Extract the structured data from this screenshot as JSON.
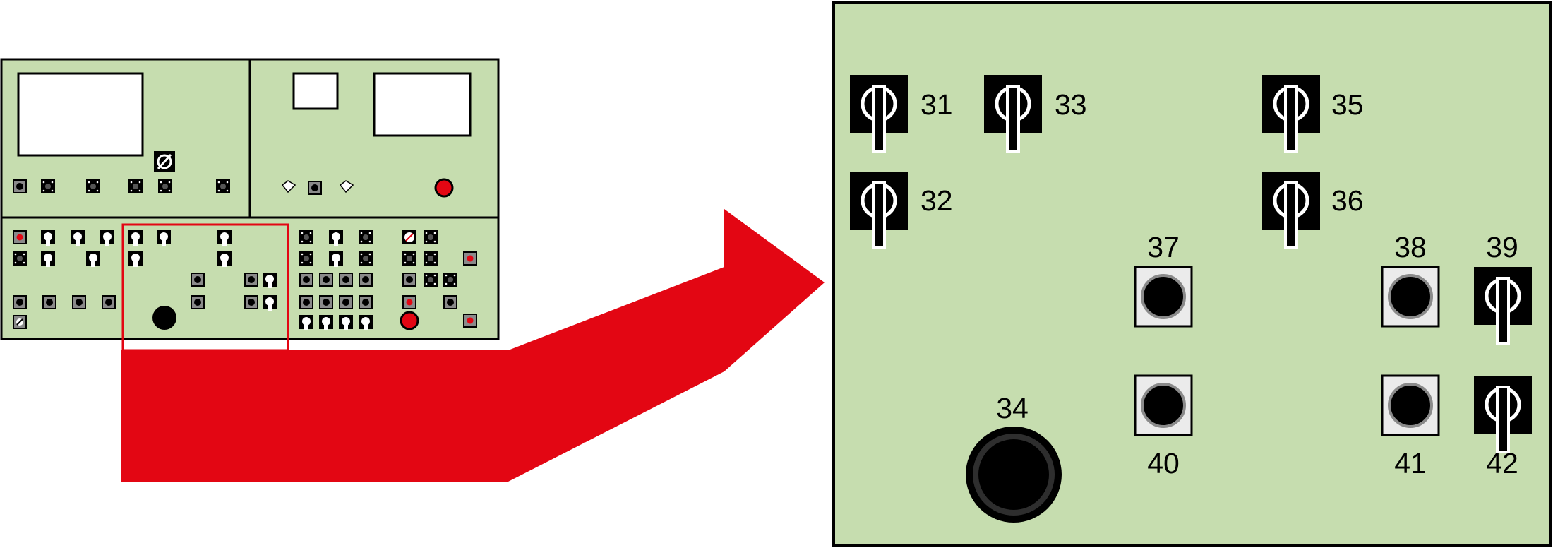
{
  "colors": {
    "panel_fill": "#c6ddaf",
    "panel_stroke": "#000000",
    "highlight_red": "#e30613",
    "button_face": "#ebebeb",
    "switch_fill": "#000000"
  },
  "icons": {
    "selector_switch": "rotary-selector-switch-icon",
    "push_button": "push-button-icon",
    "emergency_stop": "large-round-button-icon",
    "arrow": "arrow-right-icon"
  },
  "overview": {
    "description_none": ""
  },
  "detail": {
    "labels": {
      "l31": "31",
      "l32": "32",
      "l33": "33",
      "l34": "34",
      "l35": "35",
      "l36": "36",
      "l37": "37",
      "l38": "38",
      "l39": "39",
      "l40": "40",
      "l41": "41",
      "l42": "42"
    }
  }
}
